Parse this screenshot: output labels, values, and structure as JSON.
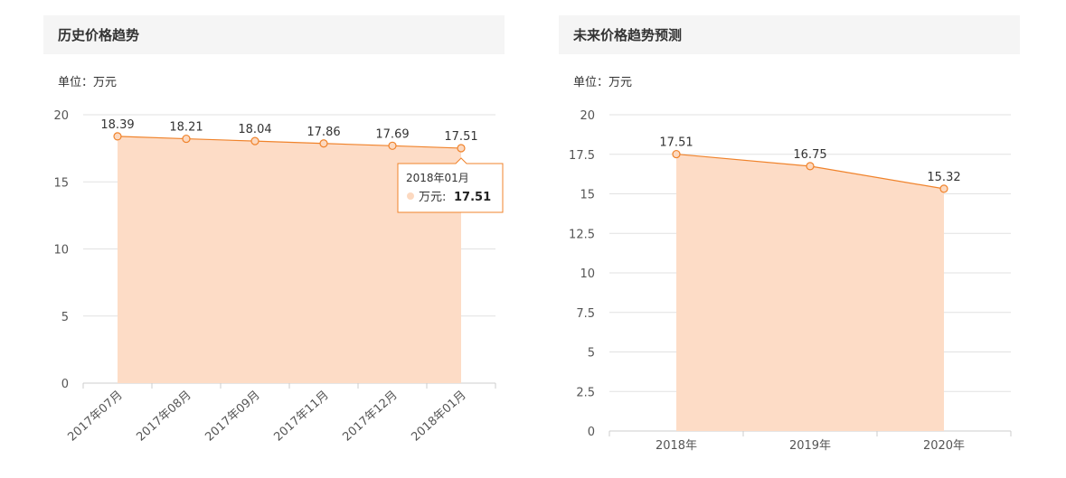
{
  "chart_data": [
    {
      "type": "area",
      "title": "历史价格趋势",
      "unit_label": "单位：万元",
      "categories": [
        "2017年07月",
        "2017年08月",
        "2017年09月",
        "2017年11月",
        "2017年12月",
        "2018年01月"
      ],
      "values": [
        18.39,
        18.21,
        18.04,
        17.86,
        17.69,
        17.51
      ],
      "ylim": [
        0,
        20
      ],
      "yticks": [
        0,
        5,
        10,
        15,
        20
      ],
      "grid": true,
      "tooltip": {
        "category": "2018年01月",
        "series_label": "万元:",
        "value": "17.51"
      }
    },
    {
      "type": "area",
      "title": "未来价格趋势预测",
      "unit_label": "单位：万元",
      "categories": [
        "2018年",
        "2019年",
        "2020年"
      ],
      "values": [
        17.51,
        16.75,
        15.32
      ],
      "ylim": [
        0,
        20
      ],
      "yticks": [
        0,
        2.5,
        5,
        7.5,
        10,
        12.5,
        15,
        17.5,
        20
      ],
      "grid": true
    }
  ],
  "colors": {
    "area_fill": "#fddcc6",
    "line": "#f0832b",
    "point_fill": "#fcd9c0",
    "grid": "#e2e2e2",
    "header_bg": "#f5f5f5"
  }
}
